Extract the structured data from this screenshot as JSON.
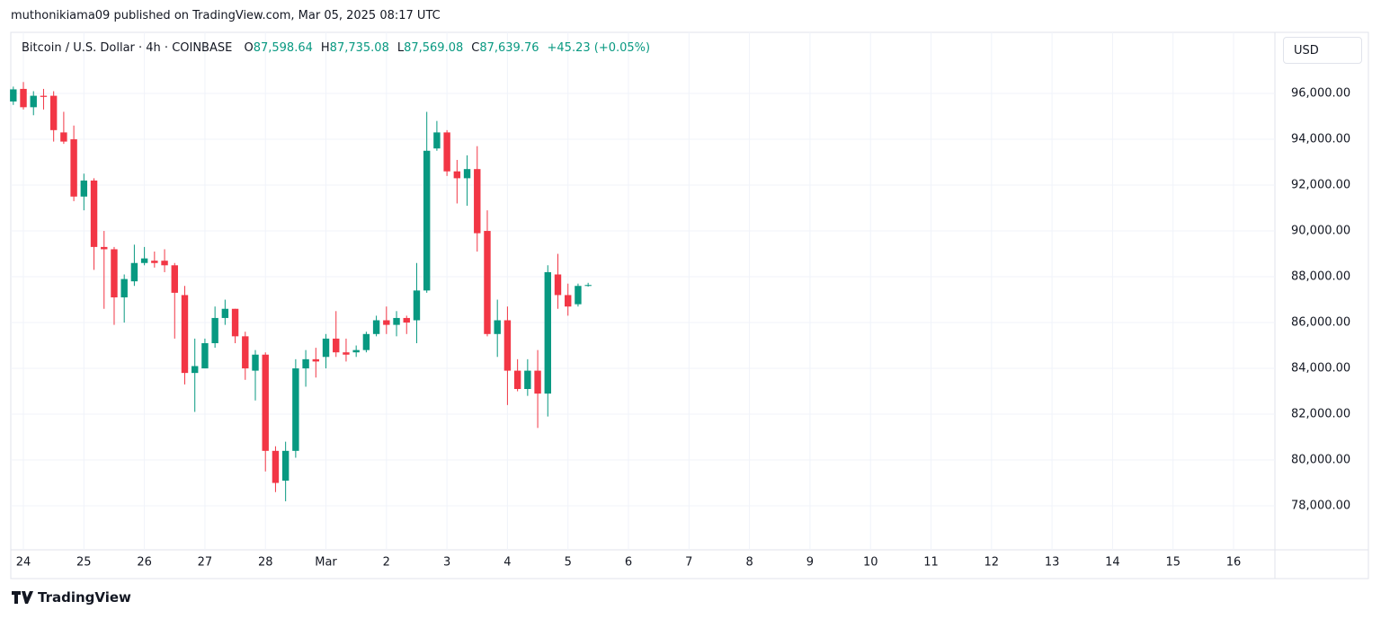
{
  "header": "muthonikiama09 published on TradingView.com, Mar 05, 2025 08:17 UTC",
  "footer": "TradingView",
  "chart_data": {
    "type": "candlestick",
    "title": "Bitcoin / U.S. Dollar · 4h · COINBASE",
    "legend_values": [
      {
        "prefix": "O",
        "text": "87,598.64"
      },
      {
        "prefix": "H",
        "text": "87,735.08"
      },
      {
        "prefix": "L",
        "text": "87,569.08"
      },
      {
        "prefix": "C",
        "text": "87,639.76"
      }
    ],
    "change": "+45.23 (+0.05%)",
    "currency": "USD",
    "up_color": "#089981",
    "down_color": "#f23645",
    "grid": true,
    "x": [
      -1,
      0,
      1,
      2,
      3,
      4,
      5,
      6,
      7,
      8,
      9,
      10,
      11,
      12,
      13,
      14,
      15,
      16,
      17,
      18,
      19,
      20,
      21,
      22,
      23,
      24,
      25,
      26,
      27,
      28,
      29,
      30,
      31,
      32,
      33,
      34,
      35,
      36,
      37,
      38,
      39,
      40,
      41,
      42,
      43,
      44,
      45,
      46,
      47,
      48,
      49,
      50,
      51,
      52,
      53,
      54,
      55,
      56
    ],
    "open": [
      95650,
      96200,
      95400,
      95900,
      95900,
      94300,
      94000,
      91500,
      92200,
      89300,
      89200,
      87100,
      87800,
      88600,
      88700,
      88700,
      88500,
      87200,
      83800,
      84000,
      85100,
      86200,
      86600,
      85400,
      83900,
      84600,
      80400,
      79100,
      80400,
      84000,
      84400,
      84500,
      85300,
      84700,
      84700,
      84800,
      85500,
      86100,
      85900,
      86200,
      86100,
      87400,
      93600,
      94300,
      92600,
      92300,
      92700,
      90000,
      85500,
      86100,
      83900,
      83100,
      83900,
      82900,
      88100,
      87200,
      86800,
      87598.64
    ],
    "high": [
      96300,
      96500,
      96100,
      96200,
      96100,
      95200,
      94600,
      92500,
      92300,
      90000,
      89300,
      88100,
      89400,
      89300,
      89100,
      89200,
      88600,
      87600,
      85300,
      85300,
      86700,
      87000,
      86600,
      85600,
      84800,
      84700,
      80600,
      80800,
      84400,
      84800,
      84900,
      85500,
      86500,
      85300,
      85000,
      85600,
      86300,
      86700,
      86500,
      86300,
      88600,
      95200,
      94800,
      94400,
      93100,
      93300,
      93700,
      90900,
      87000,
      86700,
      84400,
      84400,
      84800,
      88500,
      89000,
      87700,
      87700,
      87735.08
    ],
    "low": [
      95500,
      95300,
      95050,
      95300,
      93900,
      93800,
      91300,
      90900,
      88300,
      86600,
      85900,
      86000,
      87600,
      88500,
      88400,
      88200,
      85300,
      83300,
      82100,
      84000,
      84900,
      85900,
      85100,
      83500,
      82600,
      79500,
      78600,
      78200,
      80100,
      83200,
      83600,
      84000,
      84500,
      84300,
      84500,
      84700,
      85400,
      85500,
      85400,
      85500,
      85100,
      87300,
      93500,
      92400,
      91200,
      91100,
      89100,
      85400,
      84500,
      82400,
      83000,
      82800,
      81400,
      81900,
      86600,
      86300,
      86700,
      87569.08
    ],
    "close": [
      96180,
      95400,
      95900,
      95850,
      94400,
      93900,
      91500,
      92200,
      89300,
      89200,
      87100,
      87900,
      88600,
      88800,
      88600,
      88500,
      87300,
      83800,
      84100,
      85100,
      86200,
      86600,
      85400,
      84000,
      84600,
      80400,
      79000,
      80400,
      84000,
      84400,
      84300,
      85300,
      84700,
      84600,
      84800,
      85500,
      86100,
      85900,
      86200,
      86000,
      87400,
      93500,
      94300,
      92600,
      92300,
      92700,
      89900,
      85500,
      86100,
      83900,
      83100,
      83900,
      82900,
      88200,
      87200,
      86700,
      87600,
      87639.76
    ],
    "xlim": [
      -1.25,
      124.1
    ],
    "ylim": [
      76080,
      98590
    ],
    "xticks": [
      {
        "value": 0,
        "label": "24"
      },
      {
        "value": 6,
        "label": "25"
      },
      {
        "value": 12,
        "label": "26"
      },
      {
        "value": 18,
        "label": "27"
      },
      {
        "value": 24,
        "label": "28"
      },
      {
        "value": 30,
        "label": "Mar"
      },
      {
        "value": 36,
        "label": "2"
      },
      {
        "value": 42,
        "label": "3"
      },
      {
        "value": 48,
        "label": "4"
      },
      {
        "value": 54,
        "label": "5"
      },
      {
        "value": 60,
        "label": "6"
      },
      {
        "value": 66,
        "label": "7"
      },
      {
        "value": 72,
        "label": "8"
      },
      {
        "value": 78,
        "label": "9"
      },
      {
        "value": 84,
        "label": "10"
      },
      {
        "value": 90,
        "label": "11"
      },
      {
        "value": 96,
        "label": "12"
      },
      {
        "value": 102,
        "label": "13"
      },
      {
        "value": 108,
        "label": "14"
      },
      {
        "value": 114,
        "label": "15"
      },
      {
        "value": 120,
        "label": "16"
      }
    ],
    "yticks": [
      {
        "value": 78000,
        "label": "78,000.00"
      },
      {
        "value": 80000,
        "label": "80,000.00"
      },
      {
        "value": 82000,
        "label": "82,000.00"
      },
      {
        "value": 84000,
        "label": "84,000.00"
      },
      {
        "value": 86000,
        "label": "86,000.00"
      },
      {
        "value": 88000,
        "label": "88,000.00"
      },
      {
        "value": 90000,
        "label": "90,000.00"
      },
      {
        "value": 92000,
        "label": "92,000.00"
      },
      {
        "value": 94000,
        "label": "94,000.00"
      },
      {
        "value": 96000,
        "label": "96,000.00"
      }
    ]
  }
}
